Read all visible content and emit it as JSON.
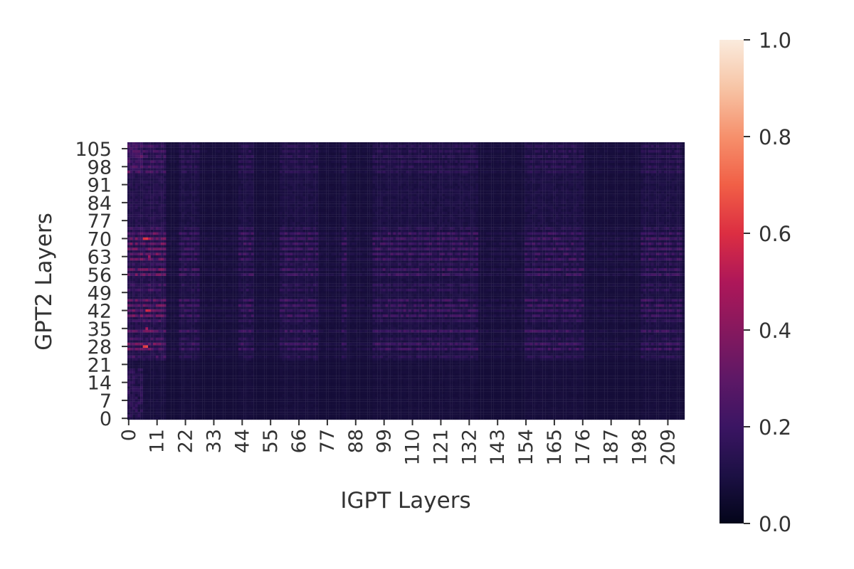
{
  "chart_data": {
    "type": "heatmap",
    "title": "",
    "xlabel": "IGPT Layers",
    "ylabel": "GPT2 Layers",
    "colormap": "rocket",
    "x_count": 216,
    "y_count": 108,
    "x_range": [
      0,
      215
    ],
    "y_range": [
      0,
      107
    ],
    "x_tick_labels": [
      "0",
      "11",
      "22",
      "33",
      "44",
      "55",
      "66",
      "77",
      "88",
      "99",
      "110",
      "121",
      "132",
      "143",
      "154",
      "165",
      "176",
      "187",
      "198",
      "209"
    ],
    "y_tick_labels": [
      "0",
      "7",
      "14",
      "21",
      "28",
      "35",
      "42",
      "49",
      "56",
      "63",
      "70",
      "77",
      "84",
      "91",
      "98",
      "105"
    ],
    "colorbar": {
      "vmin": 0.0,
      "vmax": 1.0,
      "tick_labels": [
        "0.0",
        "0.2",
        "0.4",
        "0.6",
        "0.8",
        "1.0"
      ]
    },
    "values_description_note": "",
    "value_model": {
      "background": 0.07,
      "strong_rows": [
        27,
        29,
        34,
        40,
        42,
        44,
        46,
        56,
        58,
        62,
        64,
        66,
        68,
        70,
        72
      ],
      "medium_rows": [
        24,
        31,
        38,
        50,
        52,
        60,
        74,
        96,
        98,
        100,
        102,
        104,
        106
      ],
      "strong_cols": [
        0,
        1,
        2,
        3,
        4,
        5,
        6,
        7,
        8,
        9,
        10,
        11,
        12,
        13,
        14
      ],
      "medium_cols": [
        20,
        21,
        22,
        23,
        24,
        25,
        26,
        27,
        43,
        44,
        45,
        46,
        47,
        48,
        59,
        60,
        61,
        62,
        63,
        64,
        65,
        66,
        67,
        68,
        69,
        70,
        71,
        72,
        73,
        83,
        84,
        95,
        96,
        97,
        98,
        99,
        100,
        101,
        102,
        103,
        104,
        105,
        106,
        107,
        108,
        109,
        110,
        111,
        112,
        113,
        114,
        115,
        116,
        117,
        118,
        119,
        120,
        121,
        122,
        123,
        124,
        125,
        126,
        127,
        128,
        129,
        130,
        131,
        132,
        133,
        134,
        135,
        154,
        155,
        156,
        157,
        158,
        159,
        160,
        161,
        162,
        163,
        164,
        165,
        166,
        167,
        168,
        169,
        170,
        171,
        172,
        173,
        174,
        175,
        176,
        199,
        200,
        201,
        202,
        203,
        204,
        205,
        206,
        207,
        208,
        209,
        210,
        211,
        212,
        213,
        214
      ],
      "hot_cells": [
        [
          6,
          28,
          0.62
        ],
        [
          7,
          28,
          0.65
        ],
        [
          7,
          42,
          0.58
        ],
        [
          8,
          42,
          0.55
        ],
        [
          6,
          70,
          0.6
        ],
        [
          7,
          70,
          0.62
        ],
        [
          8,
          70,
          0.5
        ],
        [
          7,
          35,
          0.48
        ],
        [
          8,
          63,
          0.45
        ]
      ]
    }
  }
}
